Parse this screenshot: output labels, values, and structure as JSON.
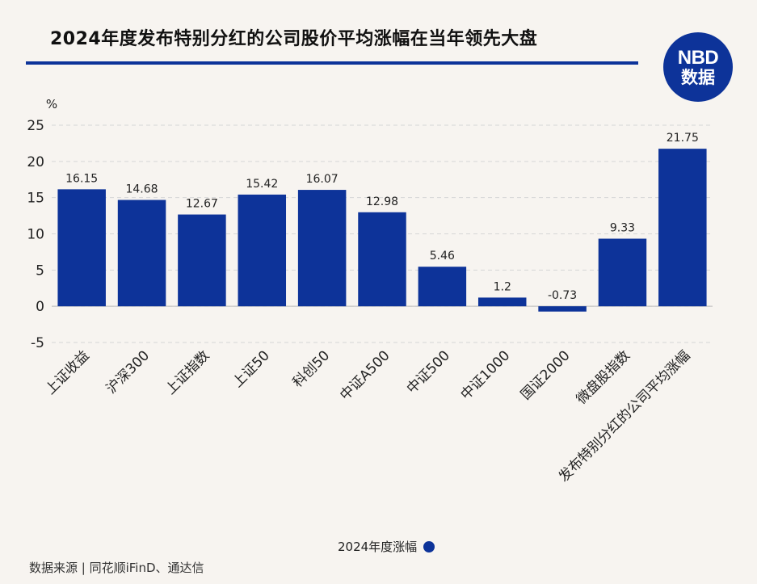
{
  "header": {
    "title": "2024年度发布特别分红的公司股价平均涨幅在当年领先大盘",
    "logo_top": "NBD",
    "logo_bottom": "数据"
  },
  "footer": {
    "source": "数据来源 | 同花顺iFinD、通达信"
  },
  "colors": {
    "bar": "#0d3399",
    "grid": "#d6d6d6",
    "background": "#f7f4f0"
  },
  "chart_data": {
    "type": "bar",
    "title": "2024年度发布特别分红的公司股价平均涨幅在当年领先大盘",
    "xlabel": "",
    "ylabel": "%",
    "ylim": [
      -5,
      25
    ],
    "yticks": [
      25,
      20,
      15,
      10,
      5,
      0,
      -5
    ],
    "grid": true,
    "legend_position": "bottom-center",
    "categories": [
      "上证收益",
      "沪深300",
      "上证指数",
      "上证50",
      "科创50",
      "中证A500",
      "中证500",
      "中证1000",
      "国证2000",
      "微盘股指数",
      "发布特别分红的公司平均涨幅"
    ],
    "series": [
      {
        "name": "2024年度涨幅",
        "values": [
          16.15,
          14.68,
          12.67,
          15.42,
          16.07,
          12.98,
          5.46,
          1.2,
          -0.73,
          9.33,
          21.75
        ],
        "labels": [
          "16.15",
          "14.68",
          "12.67",
          "15.42",
          "16.07",
          "12.98",
          "5.46",
          "1.2",
          "-0.73",
          "9.33",
          "21.75"
        ]
      }
    ]
  }
}
